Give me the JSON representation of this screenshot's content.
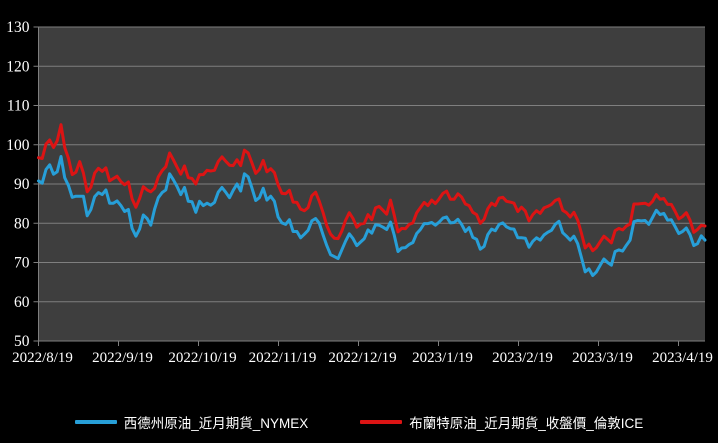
{
  "page": {
    "background": "#000000"
  },
  "chart_data": {
    "type": "line",
    "title": "",
    "xlabel": "",
    "ylabel": "",
    "ylim": [
      50,
      130
    ],
    "y_ticks": [
      50,
      60,
      70,
      80,
      90,
      100,
      110,
      120,
      130
    ],
    "x_tick_labels": [
      "2022/8/19",
      "2022/9/19",
      "2022/10/19",
      "2022/11/19",
      "2022/12/19",
      "2023/1/19",
      "2023/2/19",
      "2023/3/19",
      "2023/4/19"
    ],
    "grid": true,
    "legend_position": "bottom",
    "plot_bg": "#3E3E3E",
    "grid_color": "#7F7F7F",
    "text_color": "#FFFFFF",
    "x_dates": [
      "2022/8/19",
      "2022/8/22",
      "2022/8/23",
      "2022/8/24",
      "2022/8/25",
      "2022/8/26",
      "2022/8/29",
      "2022/8/30",
      "2022/8/31",
      "2022/9/1",
      "2022/9/2",
      "2022/9/5",
      "2022/9/6",
      "2022/9/7",
      "2022/9/8",
      "2022/9/9",
      "2022/9/12",
      "2022/9/13",
      "2022/9/14",
      "2022/9/15",
      "2022/9/16",
      "2022/9/19",
      "2022/9/20",
      "2022/9/21",
      "2022/9/22",
      "2022/9/23",
      "2022/9/26",
      "2022/9/27",
      "2022/9/28",
      "2022/9/29",
      "2022/9/30",
      "2022/10/3",
      "2022/10/4",
      "2022/10/5",
      "2022/10/6",
      "2022/10/7",
      "2022/10/10",
      "2022/10/11",
      "2022/10/12",
      "2022/10/13",
      "2022/10/14",
      "2022/10/17",
      "2022/10/18",
      "2022/10/19",
      "2022/10/20",
      "2022/10/21",
      "2022/10/24",
      "2022/10/25",
      "2022/10/26",
      "2022/10/27",
      "2022/10/28",
      "2022/10/31",
      "2022/11/1",
      "2022/11/2",
      "2022/11/3",
      "2022/11/4",
      "2022/11/7",
      "2022/11/8",
      "2022/11/9",
      "2022/11/10",
      "2022/11/11",
      "2022/11/14",
      "2022/11/15",
      "2022/11/16",
      "2022/11/17",
      "2022/11/18",
      "2022/11/21",
      "2022/11/22",
      "2022/11/23",
      "2022/11/24",
      "2022/11/25",
      "2022/11/28",
      "2022/11/29",
      "2022/11/30",
      "2022/12/1",
      "2022/12/2",
      "2022/12/5",
      "2022/12/6",
      "2022/12/7",
      "2022/12/8",
      "2022/12/9",
      "2022/12/12",
      "2022/12/13",
      "2022/12/14",
      "2022/12/15",
      "2022/12/16",
      "2022/12/19",
      "2022/12/20",
      "2022/12/21",
      "2022/12/22",
      "2022/12/23",
      "2022/12/27",
      "2022/12/28",
      "2022/12/29",
      "2022/12/30",
      "2023/1/3",
      "2023/1/4",
      "2023/1/5",
      "2023/1/6",
      "2023/1/9",
      "2023/1/10",
      "2023/1/11",
      "2023/1/12",
      "2023/1/13",
      "2023/1/16",
      "2023/1/17",
      "2023/1/18",
      "2023/1/19",
      "2023/1/20",
      "2023/1/23",
      "2023/1/24",
      "2023/1/25",
      "2023/1/26",
      "2023/1/27",
      "2023/1/30",
      "2023/1/31",
      "2023/2/1",
      "2023/2/2",
      "2023/2/3",
      "2023/2/6",
      "2023/2/7",
      "2023/2/8",
      "2023/2/9",
      "2023/2/10",
      "2023/2/13",
      "2023/2/14",
      "2023/2/15",
      "2023/2/16",
      "2023/2/17",
      "2023/2/20",
      "2023/2/21",
      "2023/2/22",
      "2023/2/23",
      "2023/2/24",
      "2023/2/27",
      "2023/2/28",
      "2023/3/1",
      "2023/3/2",
      "2023/3/3",
      "2023/3/6",
      "2023/3/7",
      "2023/3/8",
      "2023/3/9",
      "2023/3/10",
      "2023/3/13",
      "2023/3/14",
      "2023/3/15",
      "2023/3/16",
      "2023/3/17",
      "2023/3/20",
      "2023/3/21",
      "2023/3/22",
      "2023/3/23",
      "2023/3/24",
      "2023/3/27",
      "2023/3/28",
      "2023/3/29",
      "2023/3/30",
      "2023/3/31",
      "2023/4/3",
      "2023/4/4",
      "2023/4/5",
      "2023/4/6",
      "2023/4/10",
      "2023/4/11",
      "2023/4/12",
      "2023/4/13",
      "2023/4/14",
      "2023/4/17",
      "2023/4/18",
      "2023/4/19",
      "2023/4/20",
      "2023/4/21",
      "2023/4/24",
      "2023/4/25",
      "2023/4/26",
      "2023/4/27",
      "2023/4/28",
      "2023/5/1"
    ],
    "series": [
      {
        "name": "西德州原油_近月期貨_NYMEX",
        "color": "#279FD8",
        "values": [
          90.8,
          90.2,
          93.7,
          94.9,
          92.5,
          93.1,
          97.0,
          91.6,
          89.6,
          86.6,
          86.9,
          86.9,
          86.9,
          81.9,
          83.5,
          86.8,
          87.8,
          87.3,
          88.5,
          85.1,
          85.1,
          85.7,
          84.5,
          83.0,
          83.5,
          78.7,
          76.7,
          78.5,
          82.1,
          81.2,
          79.5,
          83.6,
          86.5,
          87.8,
          88.5,
          92.6,
          91.1,
          89.4,
          87.3,
          89.1,
          85.6,
          85.5,
          82.8,
          85.6,
          84.5,
          85.1,
          84.6,
          85.3,
          87.9,
          89.1,
          87.9,
          86.5,
          88.4,
          90.0,
          88.2,
          92.6,
          91.8,
          89.0,
          85.8,
          86.5,
          88.9,
          85.9,
          86.9,
          85.6,
          81.6,
          80.1,
          79.7,
          80.9,
          77.9,
          77.9,
          76.3,
          77.2,
          78.2,
          80.6,
          81.2,
          80.0,
          77.0,
          74.3,
          72.0,
          71.5,
          71.0,
          73.2,
          75.4,
          77.3,
          76.1,
          74.3,
          75.2,
          76.1,
          78.3,
          77.5,
          79.6,
          79.5,
          79.0,
          78.4,
          80.3,
          77.0,
          72.8,
          73.7,
          73.8,
          74.6,
          75.1,
          77.4,
          78.4,
          79.9,
          79.9,
          80.2,
          79.5,
          80.3,
          81.3,
          81.6,
          80.1,
          80.2,
          81.0,
          79.7,
          77.9,
          78.9,
          76.4,
          75.9,
          73.4,
          74.1,
          77.1,
          78.5,
          78.1,
          79.7,
          80.1,
          79.1,
          78.6,
          78.5,
          76.3,
          76.3,
          76.2,
          73.9,
          75.4,
          76.3,
          75.7,
          77.0,
          77.7,
          78.2,
          79.7,
          80.5,
          77.6,
          76.7,
          75.7,
          76.7,
          74.8,
          71.3,
          67.6,
          68.4,
          66.7,
          67.6,
          69.3,
          70.9,
          70.0,
          69.3,
          72.8,
          73.2,
          72.9,
          74.4,
          75.7,
          80.4,
          80.7,
          80.6,
          80.7,
          79.7,
          81.5,
          83.3,
          82.2,
          82.5,
          80.8,
          80.9,
          79.2,
          77.4,
          77.9,
          78.8,
          77.1,
          74.3,
          74.8,
          76.8,
          75.7
        ]
      },
      {
        "name": "布蘭特原油_近月期貨_收盤價_倫敦ICE",
        "color": "#DC1414",
        "values": [
          96.7,
          96.5,
          100.2,
          101.2,
          99.3,
          101.0,
          105.1,
          99.3,
          96.5,
          92.4,
          93.0,
          95.7,
          92.8,
          88.0,
          89.2,
          92.8,
          94.0,
          93.2,
          94.1,
          90.8,
          91.4,
          92.0,
          90.6,
          89.8,
          90.5,
          86.2,
          84.1,
          86.3,
          89.3,
          88.5,
          88.0,
          88.9,
          91.8,
          93.4,
          94.4,
          97.9,
          96.2,
          94.3,
          92.5,
          94.6,
          91.6,
          91.4,
          90.0,
          92.4,
          92.4,
          93.5,
          93.3,
          93.5,
          95.7,
          96.9,
          95.8,
          94.8,
          94.7,
          96.2,
          94.7,
          98.6,
          97.9,
          95.4,
          92.7,
          93.7,
          96.0,
          93.1,
          93.9,
          92.9,
          89.8,
          87.6,
          87.5,
          88.4,
          85.4,
          85.3,
          83.6,
          83.2,
          84.0,
          87.0,
          87.9,
          85.6,
          82.7,
          79.4,
          77.2,
          76.2,
          76.1,
          78.0,
          80.7,
          82.7,
          81.2,
          79.0,
          79.8,
          80.0,
          82.2,
          80.9,
          83.9,
          84.3,
          83.3,
          82.3,
          85.9,
          82.1,
          77.8,
          78.7,
          78.6,
          79.7,
          80.1,
          82.7,
          84.0,
          85.3,
          84.5,
          85.9,
          85.0,
          86.2,
          87.6,
          88.2,
          86.1,
          86.1,
          87.5,
          86.7,
          84.9,
          84.5,
          82.8,
          82.2,
          80.0,
          81.0,
          83.7,
          85.1,
          84.5,
          86.4,
          86.6,
          85.6,
          85.4,
          85.1,
          83.0,
          84.1,
          83.1,
          80.6,
          82.2,
          83.2,
          82.5,
          83.9,
          84.3,
          84.8,
          85.8,
          86.2,
          83.3,
          82.7,
          81.6,
          82.8,
          80.8,
          77.5,
          73.7,
          74.7,
          73.0,
          73.8,
          75.3,
          76.7,
          75.9,
          75.0,
          78.1,
          78.7,
          78.3,
          79.3,
          79.8,
          84.9,
          84.9,
          85.0,
          85.1,
          84.6,
          85.6,
          87.3,
          86.1,
          86.3,
          84.8,
          84.8,
          83.1,
          81.1,
          81.7,
          82.7,
          80.8,
          77.7,
          78.4,
          79.5,
          79.3
        ]
      }
    ]
  }
}
